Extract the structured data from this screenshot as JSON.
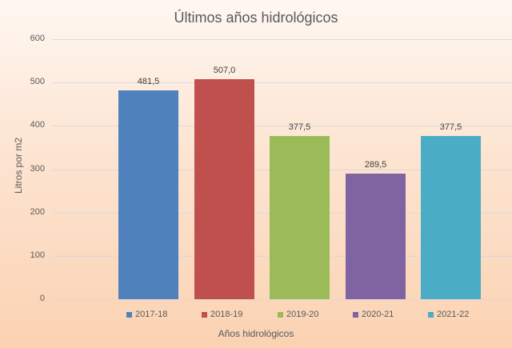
{
  "chart_data": {
    "type": "bar",
    "title": "Últimos años hidrológicos",
    "xlabel": "Años hidrológicos",
    "ylabel": "Litros por m2",
    "ylim": [
      0,
      600
    ],
    "yticks": [
      "0",
      "100",
      "200",
      "300",
      "400",
      "500",
      "600"
    ],
    "grid": true,
    "legend_position": "bottom",
    "categories": [
      "2017-18",
      "2018-19",
      "2019-20",
      "2020-21",
      "2021-22"
    ],
    "values": [
      481.5,
      507.0,
      377.5,
      289.5,
      377.5
    ],
    "value_labels": [
      "481,5",
      "507,0",
      "377,5",
      "289,5",
      "377,5"
    ],
    "colors": [
      "#4f81bd",
      "#c0504d",
      "#9bbb59",
      "#8064a2",
      "#4bacc6"
    ]
  }
}
